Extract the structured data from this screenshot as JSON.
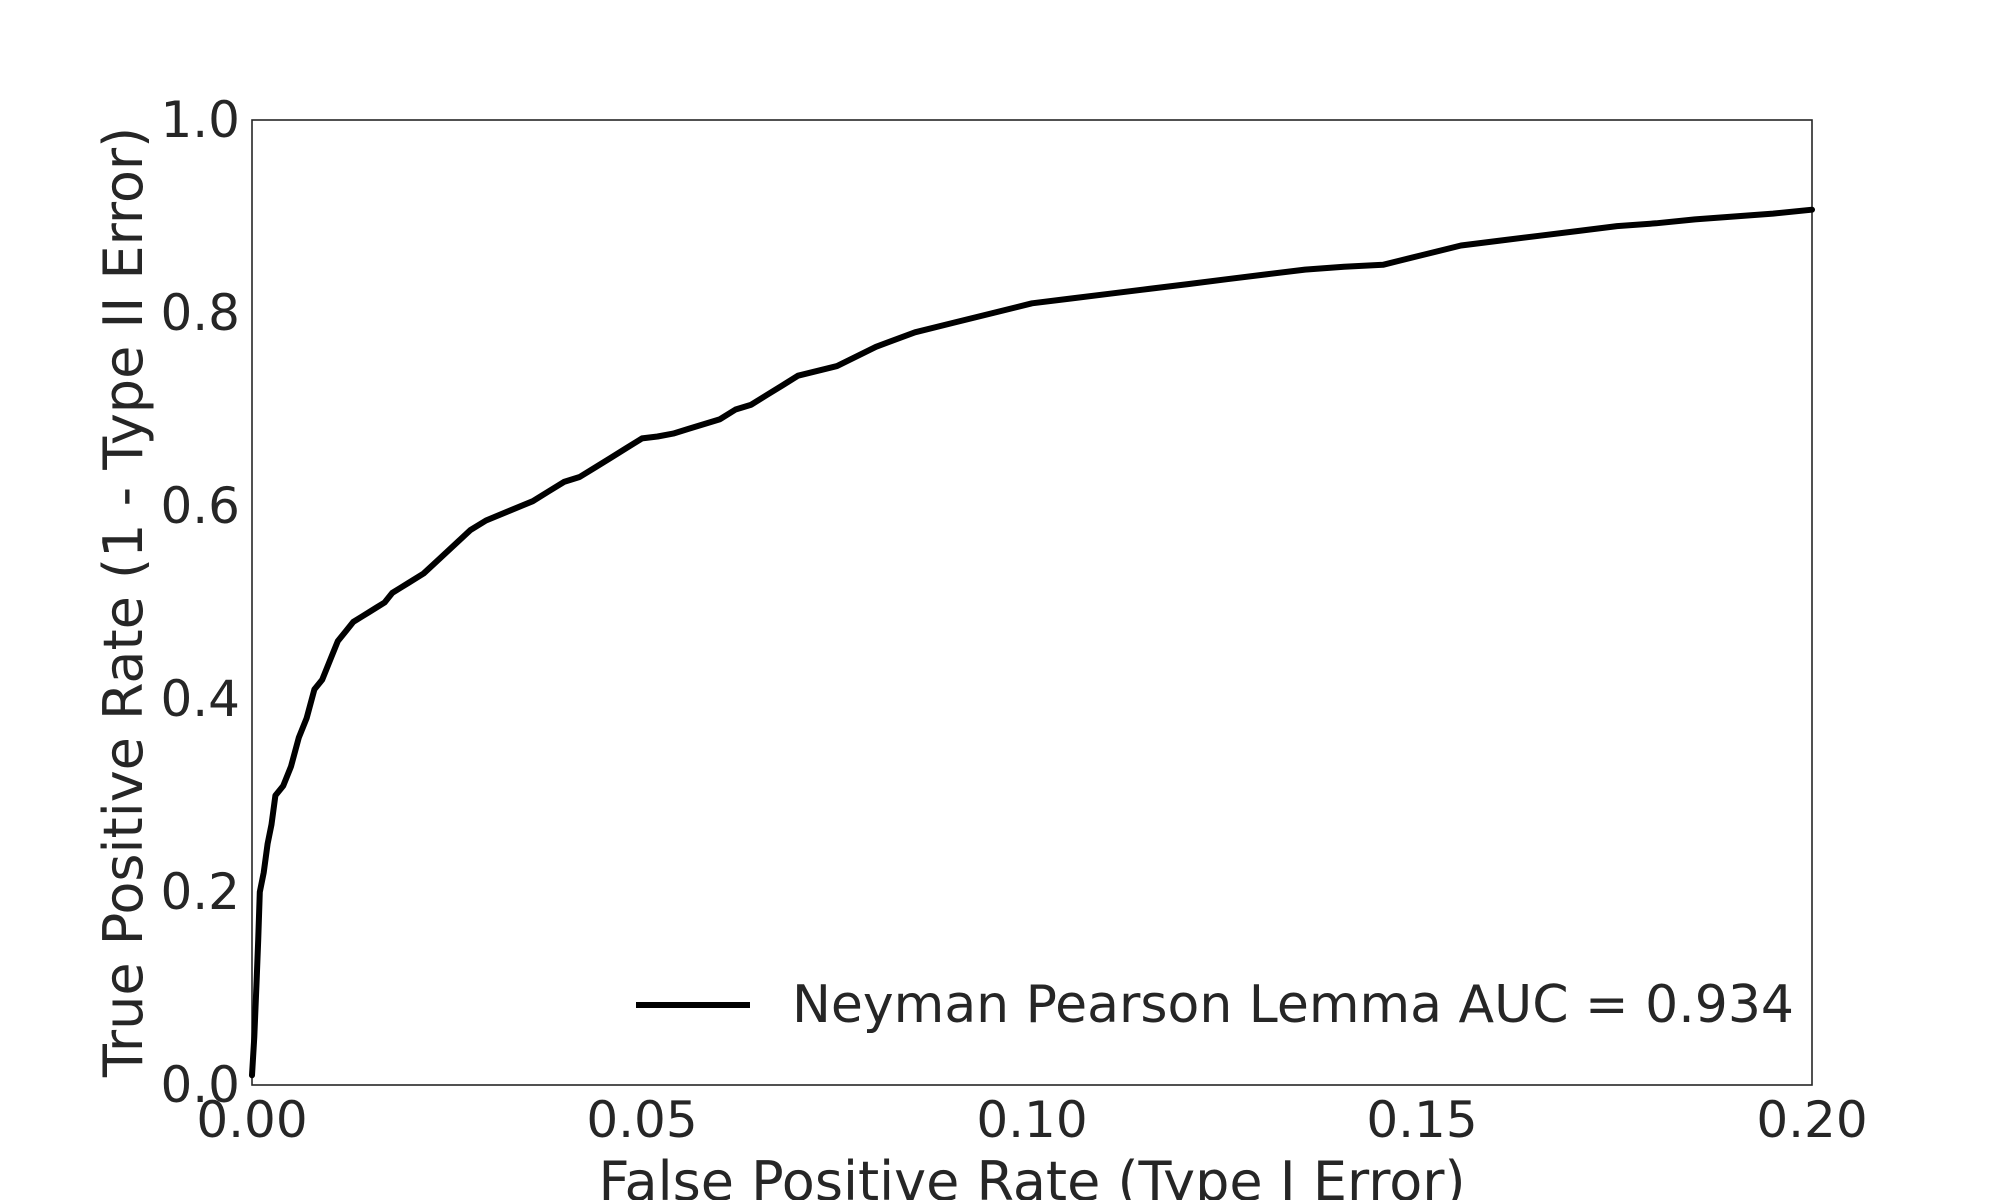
{
  "chart_data": {
    "type": "line",
    "title": "",
    "xlabel": "False Positive Rate (Type I Error)",
    "ylabel": "True Positive Rate (1 - Type II Error)",
    "xlim": [
      0.0,
      0.2
    ],
    "ylim": [
      0.0,
      1.0
    ],
    "xticks": [
      "0.00",
      "0.05",
      "0.10",
      "0.15",
      "0.20"
    ],
    "yticks": [
      "0.0",
      "0.2",
      "0.4",
      "0.6",
      "0.8",
      "1.0"
    ],
    "grid": false,
    "legend_position": "lower-right",
    "series": [
      {
        "name": "Neyman Pearson Lemma AUC = 0.934",
        "color": "#000000",
        "x": [
          0.0,
          0.0003,
          0.0006,
          0.0008,
          0.001,
          0.0015,
          0.002,
          0.0025,
          0.003,
          0.004,
          0.005,
          0.006,
          0.007,
          0.008,
          0.009,
          0.01,
          0.011,
          0.012,
          0.013,
          0.014,
          0.015,
          0.016,
          0.017,
          0.018,
          0.019,
          0.02,
          0.022,
          0.024,
          0.026,
          0.028,
          0.03,
          0.033,
          0.036,
          0.038,
          0.04,
          0.042,
          0.044,
          0.046,
          0.048,
          0.05,
          0.052,
          0.054,
          0.056,
          0.058,
          0.06,
          0.062,
          0.064,
          0.066,
          0.068,
          0.07,
          0.075,
          0.08,
          0.085,
          0.09,
          0.095,
          0.1,
          0.105,
          0.11,
          0.115,
          0.12,
          0.125,
          0.13,
          0.135,
          0.14,
          0.145,
          0.15,
          0.155,
          0.16,
          0.165,
          0.17,
          0.175,
          0.18,
          0.185,
          0.19,
          0.195,
          0.2
        ],
        "y": [
          0.01,
          0.05,
          0.11,
          0.15,
          0.2,
          0.22,
          0.25,
          0.27,
          0.3,
          0.31,
          0.33,
          0.36,
          0.38,
          0.41,
          0.42,
          0.44,
          0.46,
          0.47,
          0.48,
          0.485,
          0.49,
          0.495,
          0.5,
          0.51,
          0.515,
          0.52,
          0.53,
          0.545,
          0.56,
          0.575,
          0.585,
          0.595,
          0.605,
          0.615,
          0.625,
          0.63,
          0.64,
          0.65,
          0.66,
          0.67,
          0.672,
          0.675,
          0.68,
          0.685,
          0.69,
          0.7,
          0.705,
          0.715,
          0.725,
          0.735,
          0.745,
          0.765,
          0.78,
          0.79,
          0.8,
          0.81,
          0.815,
          0.82,
          0.825,
          0.83,
          0.835,
          0.84,
          0.845,
          0.848,
          0.85,
          0.86,
          0.87,
          0.875,
          0.88,
          0.885,
          0.89,
          0.893,
          0.897,
          0.9,
          0.903,
          0.907
        ]
      }
    ]
  }
}
